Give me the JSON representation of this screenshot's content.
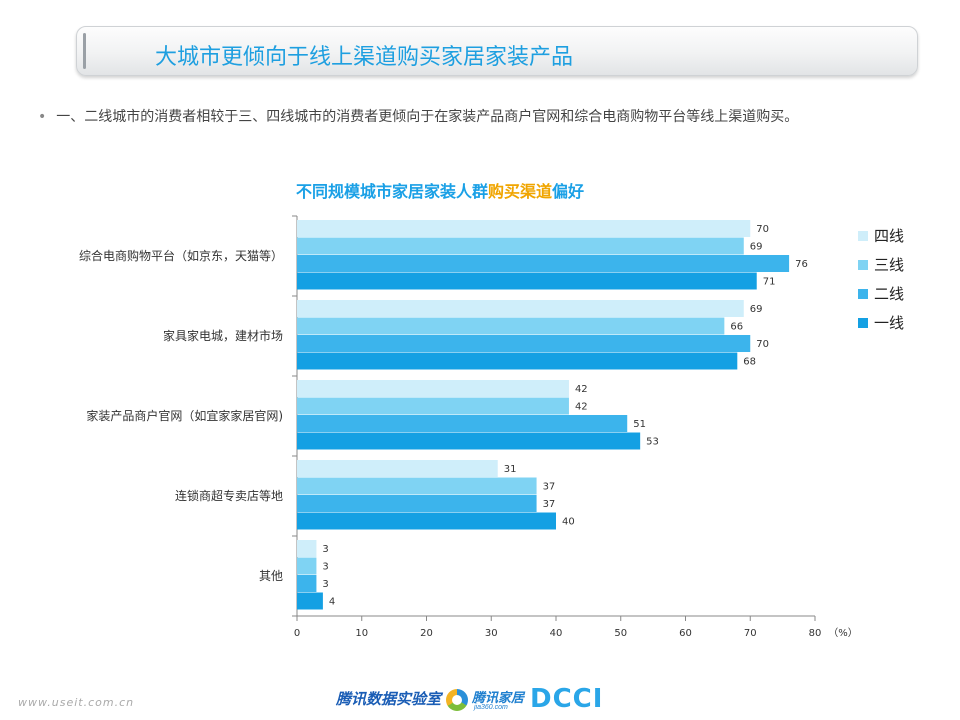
{
  "header": {
    "title": "大城市更倾向于线上渠道购买家居家装产品"
  },
  "bullet": {
    "marker": "•",
    "text": "一、二线城市的消费者相较于三、四线城市的消费者更倾向于在家装产品商户官网和综合电商购物平台等线上渠道购买。"
  },
  "chart_title": {
    "prefix": "不同规模城市家居家装人群",
    "highlight": "购买渠道",
    "suffix": "偏好",
    "highlight_color": "#f0a500",
    "color": "#1aa0e6"
  },
  "chart_data": {
    "type": "bar",
    "orientation": "horizontal",
    "title": "不同规模城市家居家装人群购买渠道偏好",
    "categories": [
      "综合电商购物平台（如京东，天猫等）",
      "家具家电城，建材市场",
      "家装产品商户官网（如宜家家居官网)",
      "连锁商超专卖店等地",
      "其他"
    ],
    "series": [
      {
        "name": "四线",
        "color": "#cfeefa",
        "values": [
          70,
          69,
          42,
          31,
          3
        ]
      },
      {
        "name": "三线",
        "color": "#7fd3f3",
        "values": [
          69,
          66,
          42,
          37,
          3
        ]
      },
      {
        "name": "二线",
        "color": "#3cb4ec",
        "values": [
          76,
          70,
          51,
          37,
          3
        ]
      },
      {
        "name": "一线",
        "color": "#14a0e3",
        "values": [
          71,
          68,
          53,
          40,
          4
        ]
      }
    ],
    "xlim": [
      0,
      80
    ],
    "xticks": [
      0,
      10,
      20,
      30,
      40,
      50,
      60,
      70,
      80
    ],
    "xunit": "（%）",
    "legend_position": "right",
    "grid": false
  },
  "footer": {
    "url": "www.useit.com.cn",
    "logo_tencent": "腾讯数据实验室",
    "logo_jia": "腾讯家居",
    "logo_jia_sub": "jia360.com",
    "logo_dcci": "DCCI"
  }
}
